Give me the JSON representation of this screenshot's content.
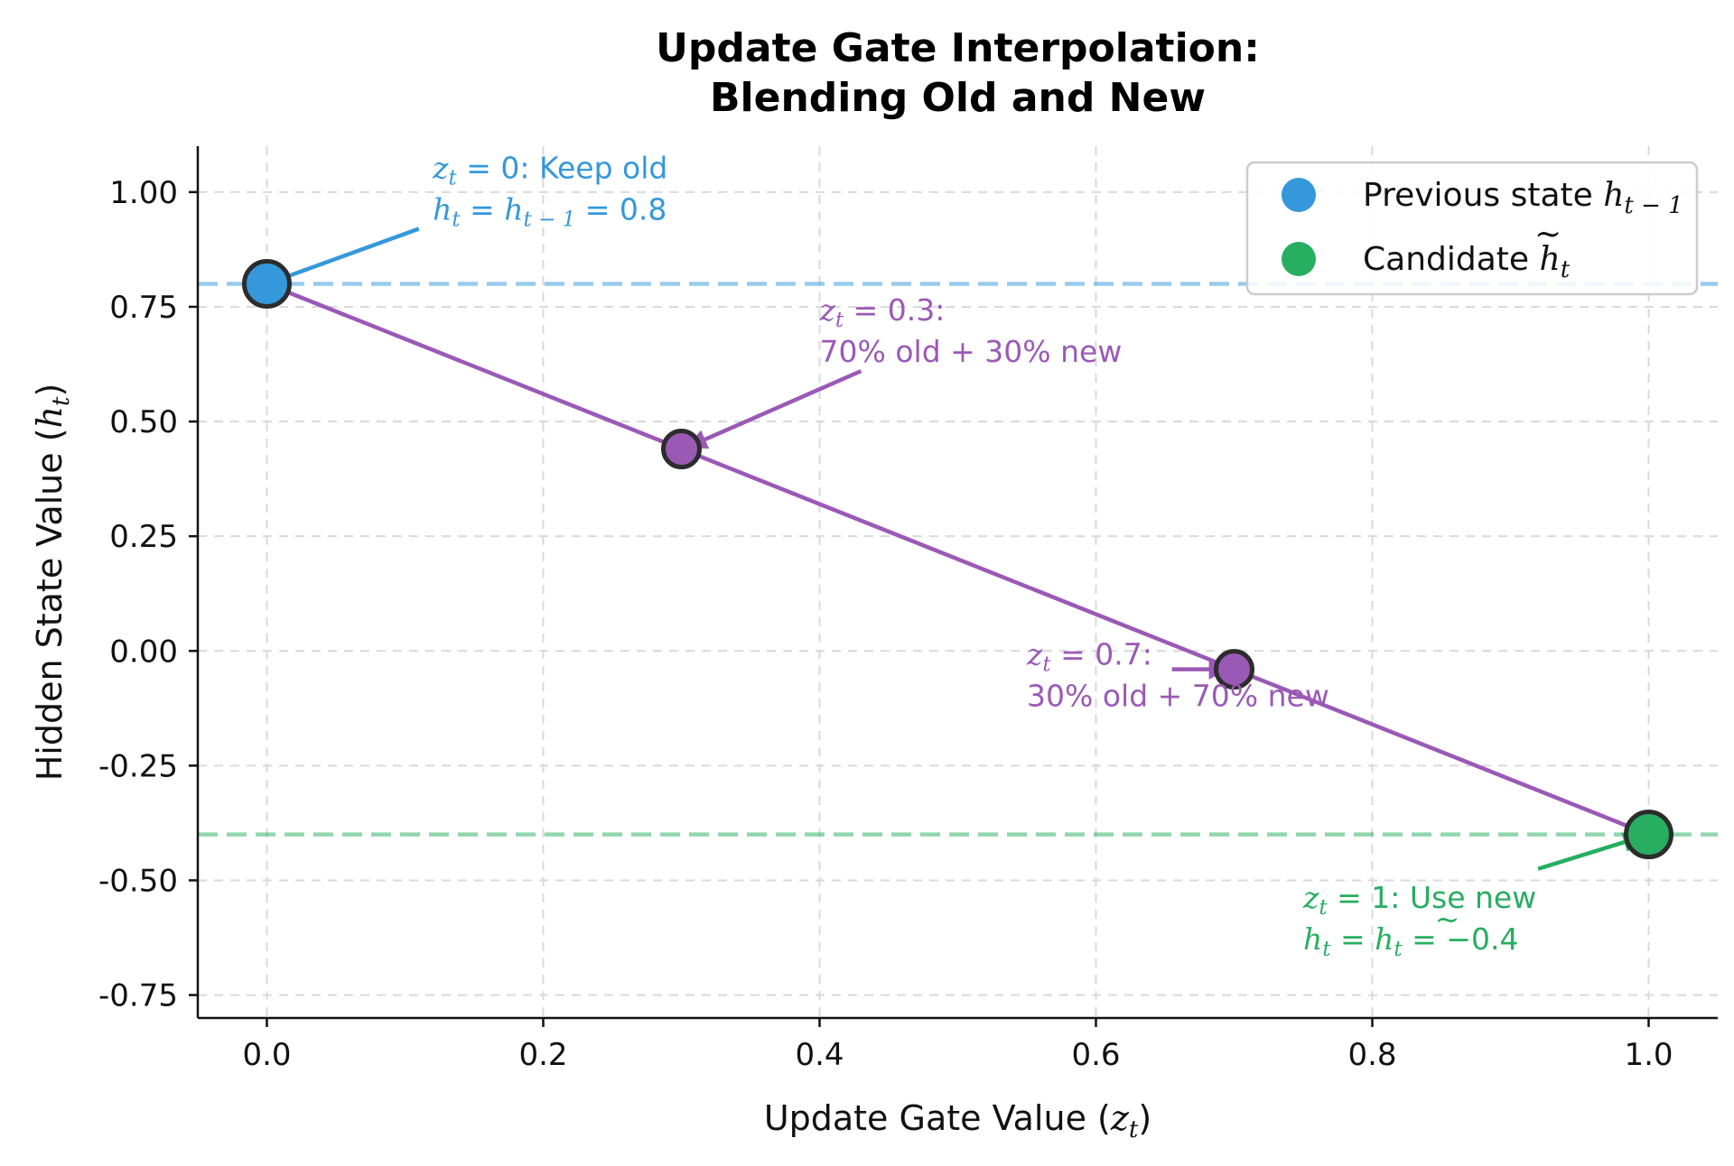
{
  "chart_data": {
    "type": "line",
    "title_lines": [
      "Update Gate Interpolation:",
      "Blending Old and New"
    ],
    "xlabel": {
      "text": "Update Gate Value (",
      "var": "z",
      "sub": "t",
      "close": ")"
    },
    "ylabel": {
      "text": "Hidden State Value (",
      "var": "h",
      "sub": "t",
      "close": ")"
    },
    "xlim": [
      -0.05,
      1.05
    ],
    "ylim": [
      -0.8,
      1.1
    ],
    "xticks": [
      0.0,
      0.2,
      0.4,
      0.6,
      0.8,
      1.0
    ],
    "xtick_labels": [
      "0.0",
      "0.2",
      "0.4",
      "0.6",
      "0.8",
      "1.0"
    ],
    "yticks": [
      1.0,
      0.75,
      0.5,
      0.25,
      0.0,
      -0.25,
      -0.5,
      -0.75
    ],
    "ytick_labels": [
      "1.00",
      "0.75",
      "0.50",
      "0.25",
      "0.00",
      "-0.25",
      "-0.50",
      "-0.75"
    ],
    "grid": true,
    "legend_placement": "top-right",
    "colors": {
      "previous": "#3498db",
      "candidate": "#27ae60",
      "interp": "#9b59b6",
      "marker_edge": "#2c2c2c",
      "grid": "#d9d9d9"
    },
    "interpolation_line": {
      "x": [
        0.0,
        1.0
      ],
      "y": [
        0.8,
        -0.4
      ]
    },
    "reference_lines": [
      {
        "name": "previous",
        "y": 0.8
      },
      {
        "name": "candidate",
        "y": -0.4
      }
    ],
    "points": [
      {
        "name": "previous",
        "x": 0.0,
        "y": 0.8,
        "size": "large"
      },
      {
        "name": "interp",
        "x": 0.3,
        "y": 0.44,
        "size": "small"
      },
      {
        "name": "interp",
        "x": 0.7,
        "y": -0.04,
        "size": "small"
      },
      {
        "name": "candidate",
        "x": 1.0,
        "y": -0.4,
        "size": "large"
      }
    ],
    "legend": [
      {
        "color": "previous",
        "text": "Previous state ",
        "var": "h",
        "sub": "t − 1",
        "tilde": false
      },
      {
        "color": "candidate",
        "text": "Candidate ",
        "var": "h",
        "sub": "t",
        "tilde": true
      }
    ],
    "annotations": [
      {
        "color": "previous",
        "line1": {
          "var": "z",
          "sub": "t",
          "rest": " = 0: Keep old"
        },
        "line2": {
          "var": "h",
          "sub": "t",
          "rest": " = ",
          "var2": "h",
          "sub2": "t − 1",
          "rest2": " = 0.8",
          "tilde2": false
        },
        "text_at": [
          0.12,
          1.03
        ],
        "arrow_from": [
          0.11,
          0.92
        ],
        "arrow_to": [
          0.0,
          0.8
        ]
      },
      {
        "color": "interp",
        "line1": {
          "var": "z",
          "sub": "t",
          "rest": " = 0.3:"
        },
        "line2": {
          "plain": "70% old + 30% new"
        },
        "text_at": [
          0.4,
          0.72
        ],
        "arrow_from": [
          0.43,
          0.61
        ],
        "arrow_to": [
          0.305,
          0.445
        ]
      },
      {
        "color": "interp",
        "line1": {
          "var": "z",
          "sub": "t",
          "rest": " = 0.7:"
        },
        "line2": {
          "plain": "30% old + 70% new"
        },
        "text_at": [
          0.55,
          -0.03
        ],
        "arrow_from": [
          0.655,
          -0.04
        ],
        "arrow_to": [
          0.695,
          -0.04
        ]
      },
      {
        "color": "candidate",
        "line1": {
          "var": "z",
          "sub": "t",
          "rest": " = 1: Use new"
        },
        "line2": {
          "var": "h",
          "sub": "t",
          "rest": " = ",
          "var2": "h",
          "sub2": "t",
          "rest2": " = −0.4",
          "tilde2": true
        },
        "text_at": [
          0.75,
          -0.56
        ],
        "arrow_from": [
          0.92,
          -0.475
        ],
        "arrow_to": [
          0.995,
          -0.405
        ]
      }
    ]
  }
}
